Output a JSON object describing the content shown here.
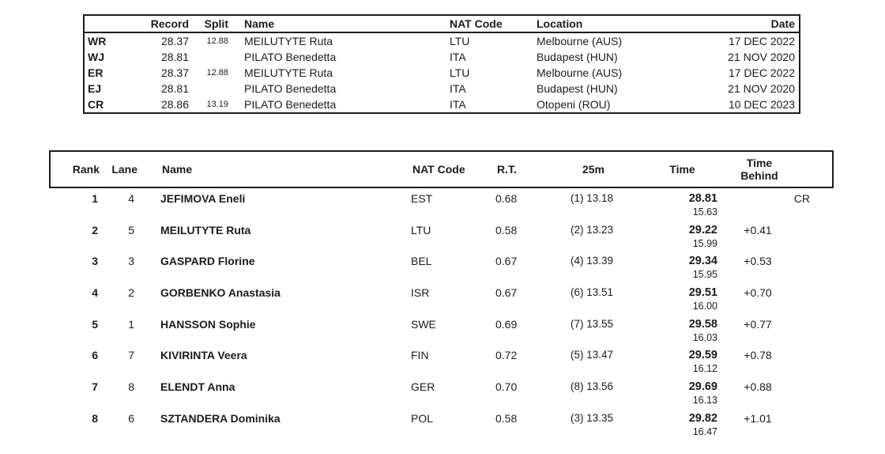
{
  "records_table": {
    "headers": {
      "code": "",
      "record": "Record",
      "split": "Split",
      "name": "Name",
      "nat_code": "NAT Code",
      "location": "Location",
      "date": "Date"
    },
    "rows": [
      {
        "code": "WR",
        "record": "28.37",
        "split": "12.88",
        "name": "MEILUTYTE Ruta",
        "nat_code": "LTU",
        "location": "Melbourne (AUS)",
        "date": "17 DEC 2022"
      },
      {
        "code": "WJ",
        "record": "28.81",
        "split": "",
        "name": "PILATO Benedetta",
        "nat_code": "ITA",
        "location": "Budapest (HUN)",
        "date": "21 NOV 2020"
      },
      {
        "code": "ER",
        "record": "28.37",
        "split": "12.88",
        "name": "MEILUTYTE Ruta",
        "nat_code": "LTU",
        "location": "Melbourne (AUS)",
        "date": "17 DEC 2022"
      },
      {
        "code": "EJ",
        "record": "28.81",
        "split": "",
        "name": "PILATO Benedetta",
        "nat_code": "ITA",
        "location": "Budapest (HUN)",
        "date": "21 NOV 2020"
      },
      {
        "code": "CR",
        "record": "28.86",
        "split": "13.19",
        "name": "PILATO Benedetta",
        "nat_code": "ITA",
        "location": "Otopeni (ROU)",
        "date": "10 DEC 2023"
      }
    ]
  },
  "results_table": {
    "headers": {
      "rank": "Rank",
      "lane": "Lane",
      "name": "Name",
      "nat_code": "NAT Code",
      "reaction_time": "R.T.",
      "split_25m": "25m",
      "time": "Time",
      "time_behind_line1": "Time",
      "time_behind_line2": "Behind"
    },
    "rows": [
      {
        "rank": "1",
        "lane": "4",
        "name": "JEFIMOVA Eneli",
        "nat_code": "EST",
        "rt": "0.68",
        "d25m": "(1) 13.18",
        "time": "28.81",
        "split": "15.63",
        "behind": "",
        "record": "CR"
      },
      {
        "rank": "2",
        "lane": "5",
        "name": "MEILUTYTE Ruta",
        "nat_code": "LTU",
        "rt": "0.58",
        "d25m": "(2) 13.23",
        "time": "29.22",
        "split": "15.99",
        "behind": "+0.41",
        "record": ""
      },
      {
        "rank": "3",
        "lane": "3",
        "name": "GASPARD Florine",
        "nat_code": "BEL",
        "rt": "0.67",
        "d25m": "(4) 13.39",
        "time": "29.34",
        "split": "15.95",
        "behind": "+0.53",
        "record": ""
      },
      {
        "rank": "4",
        "lane": "2",
        "name": "GORBENKO Anastasia",
        "nat_code": "ISR",
        "rt": "0.67",
        "d25m": "(6) 13.51",
        "time": "29.51",
        "split": "16.00",
        "behind": "+0.70",
        "record": ""
      },
      {
        "rank": "5",
        "lane": "1",
        "name": "HANSSON Sophie",
        "nat_code": "SWE",
        "rt": "0.69",
        "d25m": "(7) 13.55",
        "time": "29.58",
        "split": "16.03",
        "behind": "+0.77",
        "record": ""
      },
      {
        "rank": "6",
        "lane": "7",
        "name": "KIVIRINTA Veera",
        "nat_code": "FIN",
        "rt": "0.72",
        "d25m": "(5) 13.47",
        "time": "29.59",
        "split": "16.12",
        "behind": "+0.78",
        "record": ""
      },
      {
        "rank": "7",
        "lane": "8",
        "name": "ELENDT Anna",
        "nat_code": "GER",
        "rt": "0.70",
        "d25m": "(8) 13.56",
        "time": "29.69",
        "split": "16.13",
        "behind": "+0.88",
        "record": ""
      },
      {
        "rank": "8",
        "lane": "6",
        "name": "SZTANDERA Dominika",
        "nat_code": "POL",
        "rt": "0.58",
        "d25m": "(3) 13.35",
        "time": "29.82",
        "split": "16.47",
        "behind": "+1.01",
        "record": ""
      }
    ]
  }
}
